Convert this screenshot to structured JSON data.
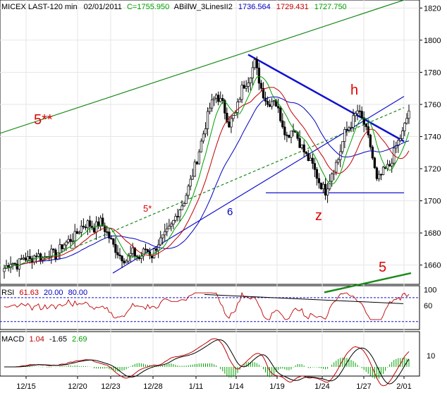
{
  "header": {
    "symbol": "MICEX LAST-120 min",
    "date": "02/01/2011",
    "close": "C=1755.950",
    "indicator_name": "ABillW_3LinesII2",
    "ind_v1": "1736.564",
    "ind_v2": "1729.431",
    "ind_v3": "1727.750",
    "colors": {
      "text": "#000000",
      "close": "#00a000",
      "v1": "#0000c0",
      "v2": "#c00000",
      "v3": "#00a000"
    }
  },
  "rsi_header": {
    "label": "RSI",
    "value": "61.63",
    "low": "20.00",
    "high": "80.00"
  },
  "macd_header": {
    "label": "MACD",
    "value": "1.04",
    "signal": "-1.65",
    "hist": "2.69"
  },
  "annotations": {
    "five_double_star": "5**",
    "five_star": "5*",
    "six": "6",
    "h": "h",
    "z": "z",
    "five": "5"
  },
  "chart_data": [
    {
      "type": "candlestick",
      "panel": "price",
      "y_ticks": [
        1660,
        1680,
        1700,
        1720,
        1740,
        1760,
        1780,
        1800,
        1820
      ],
      "ylim": [
        1648,
        1825
      ],
      "x_ticks": [
        "12/15",
        "12/20",
        "12/23",
        "12/28",
        "1/11",
        "1/14",
        "1/19",
        "1/24",
        "1/27",
        "2/01"
      ],
      "close_path": [
        1658,
        1662,
        1660,
        1665,
        1663,
        1667,
        1664,
        1668,
        1666,
        1672,
        1675,
        1678,
        1684,
        1686,
        1683,
        1687,
        1680,
        1672,
        1666,
        1663,
        1668,
        1664,
        1670,
        1666,
        1674,
        1678,
        1684,
        1693,
        1700,
        1712,
        1726,
        1742,
        1758,
        1766,
        1760,
        1748,
        1754,
        1770,
        1776,
        1786,
        1770,
        1760,
        1764,
        1752,
        1740,
        1746,
        1736,
        1728,
        1722,
        1712,
        1706,
        1718,
        1726,
        1742,
        1748,
        1756,
        1748,
        1734,
        1712,
        1718,
        1722,
        1734,
        1742,
        1755.95
      ],
      "series": [
        {
          "name": "1736.564",
          "color": "#0000c0"
        },
        {
          "name": "1729.431",
          "color": "#c00000"
        },
        {
          "name": "1727.750",
          "color": "#00a000"
        }
      ],
      "trendlines": [
        {
          "from": [
            "12/15",
            1742
          ],
          "to": [
            "2/01",
            1825
          ],
          "color": "green"
        },
        {
          "from": [
            "12/20",
            1670
          ],
          "to": [
            "2/01",
            1758
          ],
          "color": "green",
          "style": "dashed"
        },
        {
          "from": [
            "12/28",
            1655
          ],
          "to": [
            "2/01",
            1765
          ],
          "color": "blue"
        },
        {
          "from": [
            "1/14",
            1791
          ],
          "to": [
            "2/01",
            1737
          ],
          "color": "blue"
        },
        {
          "from": [
            "1/19",
            1705
          ],
          "to": [
            "2/01",
            1705
          ],
          "color": "blue"
        },
        {
          "from": [
            "1/27",
            1643
          ],
          "to": [
            "2/01",
            1655
          ],
          "color": "green"
        }
      ]
    },
    {
      "type": "line",
      "panel": "RSI",
      "y_ticks": [
        60,
        100
      ],
      "levels": [
        20,
        80
      ]
    },
    {
      "type": "line",
      "panel": "MACD",
      "y_ticks": [
        10
      ],
      "series": [
        {
          "name": "1.04",
          "color": "#c00000"
        },
        {
          "name": "-1.65",
          "color": "#000000"
        },
        {
          "name": "2.69",
          "color": "#00a000"
        }
      ]
    }
  ]
}
